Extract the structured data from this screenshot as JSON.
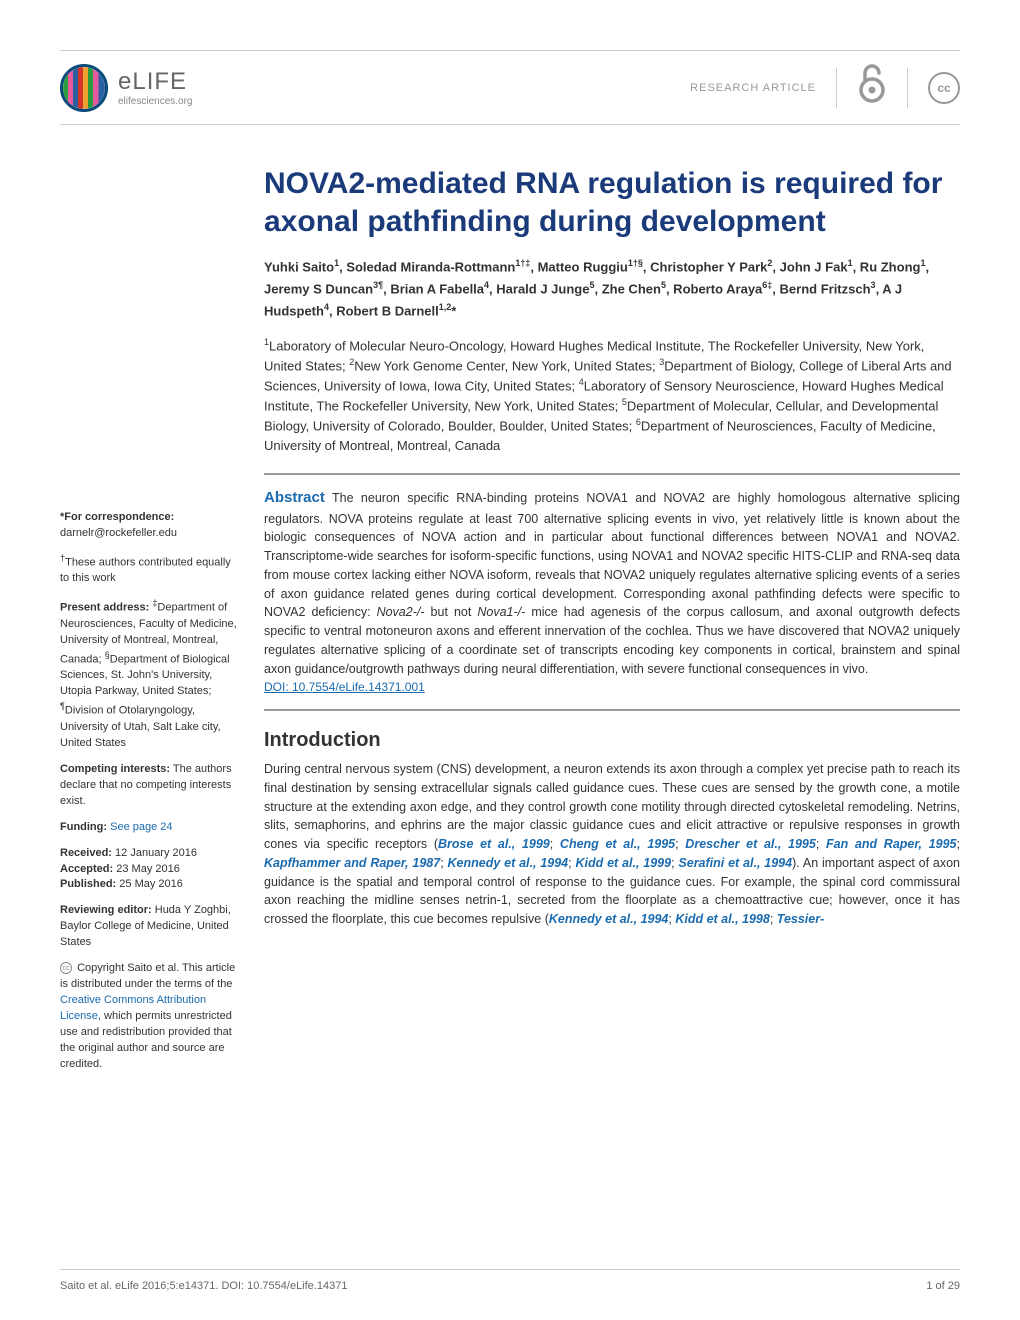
{
  "header": {
    "brand_name": "eLIFE",
    "brand_url": "elifesciences.org",
    "article_type": "RESEARCH ARTICLE",
    "logo_colors": [
      "#2a9d3e",
      "#e85a9b",
      "#2a5fa0",
      "#d4342a",
      "#f0a030"
    ],
    "logo_border": "#0a4a7a"
  },
  "title": "NOVA2-mediated RNA regulation is required for axonal pathfinding during development",
  "authors_html": "Yuhki Saito<sup>1</sup>, Soledad Miranda-Rottmann<sup>1†‡</sup>, Matteo Ruggiu<sup>1†§</sup>, Christopher Y Park<sup>2</sup>, John J Fak<sup>1</sup>, Ru Zhong<sup>1</sup>, Jeremy S Duncan<sup>3¶</sup>, Brian A Fabella<sup>4</sup>, Harald J Junge<sup>5</sup>, Zhe Chen<sup>5</sup>, Roberto Araya<sup>6‡</sup>, Bernd Fritzsch<sup>3</sup>, A J Hudspeth<sup>4</sup>, Robert B Darnell<sup>1,2</sup>*",
  "affiliations_html": "<sup>1</sup>Laboratory of Molecular Neuro-Oncology, Howard Hughes Medical Institute, The Rockefeller University, New York, United States; <sup>2</sup>New York Genome Center, New York, United States; <sup>3</sup>Department of Biology, College of Liberal Arts and Sciences, University of Iowa, Iowa City, United States; <sup>4</sup>Laboratory of Sensory Neuroscience, Howard Hughes Medical Institute, The Rockefeller University, New York, United States; <sup>5</sup>Department of Molecular, Cellular, and Developmental Biology, University of Colorado, Boulder, Boulder, United States; <sup>6</sup>Department of Neurosciences, Faculty of Medicine, University of Montreal, Montreal, Canada",
  "sidebar": {
    "correspondence_label": "*For correspondence:",
    "correspondence_email": "darnelr@rockefeller.edu",
    "equal_contrib": "†These authors contributed equally to this work",
    "present_address_label": "Present address:",
    "present_address": "‡Department of Neurosciences, Faculty of Medicine, University of Montreal, Montreal, Canada; §Department of Biological Sciences, St. John's University, Utopia Parkway, United States; ¶Division of Otolaryngology, University of Utah, Salt Lake city, United States",
    "competing_label": "Competing interests:",
    "competing_text": "The authors declare that no competing interests exist.",
    "funding_label": "Funding:",
    "funding_link": "See page 24",
    "received_label": "Received:",
    "received_date": "12 January 2016",
    "accepted_label": "Accepted:",
    "accepted_date": "23 May 2016",
    "published_label": "Published:",
    "published_date": "25 May 2016",
    "reviewing_editor_label": "Reviewing editor:",
    "reviewing_editor": "Huda Y Zoghbi, Baylor College of Medicine, United States",
    "copyright_text": "Copyright Saito et al. This article is distributed under the terms of the ",
    "license_link": "Creative Commons Attribution License,",
    "copyright_text2": " which permits unrestricted use and redistribution provided that the original author and source are credited."
  },
  "abstract": {
    "label": "Abstract",
    "text": "The neuron specific RNA-binding proteins NOVA1 and NOVA2 are highly homologous alternative splicing regulators. NOVA proteins regulate at least 700 alternative splicing events in vivo, yet relatively little is known about the biologic consequences of NOVA action and in particular about functional differences between NOVA1 and NOVA2. Transcriptome-wide searches for isoform-specific functions, using NOVA1 and NOVA2 specific HITS-CLIP and RNA-seq data from mouse cortex lacking either NOVA isoform, reveals that NOVA2 uniquely regulates alternative splicing events of a series of axon guidance related genes during cortical development. Corresponding axonal pathfinding defects were specific to NOVA2 deficiency: Nova2-/- but not Nova1-/- mice had agenesis of the corpus callosum, and axonal outgrowth defects specific to ventral motoneuron axons and efferent innervation of the cochlea. Thus we have discovered that NOVA2 uniquely regulates alternative splicing of a coordinate set of transcripts encoding key components in cortical, brainstem and spinal axon guidance/outgrowth pathways during neural differentiation, with severe functional consequences in vivo.",
    "doi": "DOI: 10.7554/eLife.14371.001"
  },
  "introduction": {
    "heading": "Introduction",
    "text_parts": [
      "During central nervous system (CNS) development, a neuron extends its axon through a complex yet precise path to reach its final destination by sensing extracellular signals called guidance cues. These cues are sensed by the growth cone, a motile structure at the extending axon edge, and they control growth cone motility through directed cytoskeletal remodeling. Netrins, slits, semaphorins, and ephrins are the major classic guidance cues and elicit attractive or repulsive responses in growth cones via specific receptors (",
      "). An important aspect of axon guidance is the spatial and temporal control of response to the guidance cues. For example, the spinal cord commissural axon reaching the midline senses netrin-1, secreted from the floorplate as a chemoattractive cue; however, once it has crossed the floorplate, this cue becomes repulsive ("
    ],
    "refs1": [
      "Brose et al., 1999",
      "Cheng et al., 1995",
      "Drescher et al., 1995",
      "Fan and Raper, 1995",
      "Kapfhammer and Raper, 1987",
      "Kennedy et al., 1994",
      "Kidd et al., 1999",
      "Serafini et al., 1994"
    ],
    "refs2": [
      "Kennedy et al., 1994",
      "Kidd et al., 1998",
      "Tessier-"
    ]
  },
  "footer": {
    "citation": "Saito et al. eLife 2016;5:e14371. DOI: 10.7554/eLife.14371",
    "page": "1 of 29"
  },
  "colors": {
    "title": "#1a3a7a",
    "link": "#1a6bb0",
    "text": "#333333",
    "muted": "#999999",
    "rule": "#999999",
    "border": "#cccccc"
  },
  "typography": {
    "title_size": 30,
    "body_size": 12.5,
    "sidebar_size": 11,
    "heading_size": 20,
    "authors_size": 13
  }
}
